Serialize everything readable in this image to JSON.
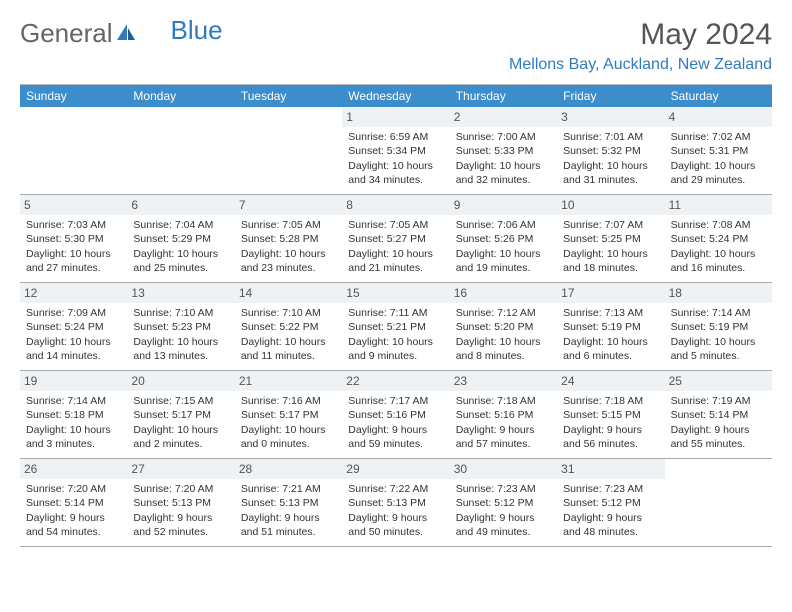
{
  "logo": {
    "text1": "General",
    "text2": "Blue"
  },
  "title": "May 2024",
  "location": "Mellons Bay, Auckland, New Zealand",
  "calendar": {
    "header_bg": "#3c8dcc",
    "header_fg": "#ffffff",
    "daynum_bg": "#eef2f5",
    "border_color": "#aaaaaa",
    "weekdays": [
      "Sunday",
      "Monday",
      "Tuesday",
      "Wednesday",
      "Thursday",
      "Friday",
      "Saturday"
    ],
    "weeks": [
      [
        {
          "num": "",
          "lines": []
        },
        {
          "num": "",
          "lines": []
        },
        {
          "num": "",
          "lines": []
        },
        {
          "num": "1",
          "lines": [
            "Sunrise: 6:59 AM",
            "Sunset: 5:34 PM",
            "Daylight: 10 hours",
            "and 34 minutes."
          ]
        },
        {
          "num": "2",
          "lines": [
            "Sunrise: 7:00 AM",
            "Sunset: 5:33 PM",
            "Daylight: 10 hours",
            "and 32 minutes."
          ]
        },
        {
          "num": "3",
          "lines": [
            "Sunrise: 7:01 AM",
            "Sunset: 5:32 PM",
            "Daylight: 10 hours",
            "and 31 minutes."
          ]
        },
        {
          "num": "4",
          "lines": [
            "Sunrise: 7:02 AM",
            "Sunset: 5:31 PM",
            "Daylight: 10 hours",
            "and 29 minutes."
          ]
        }
      ],
      [
        {
          "num": "5",
          "lines": [
            "Sunrise: 7:03 AM",
            "Sunset: 5:30 PM",
            "Daylight: 10 hours",
            "and 27 minutes."
          ]
        },
        {
          "num": "6",
          "lines": [
            "Sunrise: 7:04 AM",
            "Sunset: 5:29 PM",
            "Daylight: 10 hours",
            "and 25 minutes."
          ]
        },
        {
          "num": "7",
          "lines": [
            "Sunrise: 7:05 AM",
            "Sunset: 5:28 PM",
            "Daylight: 10 hours",
            "and 23 minutes."
          ]
        },
        {
          "num": "8",
          "lines": [
            "Sunrise: 7:05 AM",
            "Sunset: 5:27 PM",
            "Daylight: 10 hours",
            "and 21 minutes."
          ]
        },
        {
          "num": "9",
          "lines": [
            "Sunrise: 7:06 AM",
            "Sunset: 5:26 PM",
            "Daylight: 10 hours",
            "and 19 minutes."
          ]
        },
        {
          "num": "10",
          "lines": [
            "Sunrise: 7:07 AM",
            "Sunset: 5:25 PM",
            "Daylight: 10 hours",
            "and 18 minutes."
          ]
        },
        {
          "num": "11",
          "lines": [
            "Sunrise: 7:08 AM",
            "Sunset: 5:24 PM",
            "Daylight: 10 hours",
            "and 16 minutes."
          ]
        }
      ],
      [
        {
          "num": "12",
          "lines": [
            "Sunrise: 7:09 AM",
            "Sunset: 5:24 PM",
            "Daylight: 10 hours",
            "and 14 minutes."
          ]
        },
        {
          "num": "13",
          "lines": [
            "Sunrise: 7:10 AM",
            "Sunset: 5:23 PM",
            "Daylight: 10 hours",
            "and 13 minutes."
          ]
        },
        {
          "num": "14",
          "lines": [
            "Sunrise: 7:10 AM",
            "Sunset: 5:22 PM",
            "Daylight: 10 hours",
            "and 11 minutes."
          ]
        },
        {
          "num": "15",
          "lines": [
            "Sunrise: 7:11 AM",
            "Sunset: 5:21 PM",
            "Daylight: 10 hours",
            "and 9 minutes."
          ]
        },
        {
          "num": "16",
          "lines": [
            "Sunrise: 7:12 AM",
            "Sunset: 5:20 PM",
            "Daylight: 10 hours",
            "and 8 minutes."
          ]
        },
        {
          "num": "17",
          "lines": [
            "Sunrise: 7:13 AM",
            "Sunset: 5:19 PM",
            "Daylight: 10 hours",
            "and 6 minutes."
          ]
        },
        {
          "num": "18",
          "lines": [
            "Sunrise: 7:14 AM",
            "Sunset: 5:19 PM",
            "Daylight: 10 hours",
            "and 5 minutes."
          ]
        }
      ],
      [
        {
          "num": "19",
          "lines": [
            "Sunrise: 7:14 AM",
            "Sunset: 5:18 PM",
            "Daylight: 10 hours",
            "and 3 minutes."
          ]
        },
        {
          "num": "20",
          "lines": [
            "Sunrise: 7:15 AM",
            "Sunset: 5:17 PM",
            "Daylight: 10 hours",
            "and 2 minutes."
          ]
        },
        {
          "num": "21",
          "lines": [
            "Sunrise: 7:16 AM",
            "Sunset: 5:17 PM",
            "Daylight: 10 hours",
            "and 0 minutes."
          ]
        },
        {
          "num": "22",
          "lines": [
            "Sunrise: 7:17 AM",
            "Sunset: 5:16 PM",
            "Daylight: 9 hours",
            "and 59 minutes."
          ]
        },
        {
          "num": "23",
          "lines": [
            "Sunrise: 7:18 AM",
            "Sunset: 5:16 PM",
            "Daylight: 9 hours",
            "and 57 minutes."
          ]
        },
        {
          "num": "24",
          "lines": [
            "Sunrise: 7:18 AM",
            "Sunset: 5:15 PM",
            "Daylight: 9 hours",
            "and 56 minutes."
          ]
        },
        {
          "num": "25",
          "lines": [
            "Sunrise: 7:19 AM",
            "Sunset: 5:14 PM",
            "Daylight: 9 hours",
            "and 55 minutes."
          ]
        }
      ],
      [
        {
          "num": "26",
          "lines": [
            "Sunrise: 7:20 AM",
            "Sunset: 5:14 PM",
            "Daylight: 9 hours",
            "and 54 minutes."
          ]
        },
        {
          "num": "27",
          "lines": [
            "Sunrise: 7:20 AM",
            "Sunset: 5:13 PM",
            "Daylight: 9 hours",
            "and 52 minutes."
          ]
        },
        {
          "num": "28",
          "lines": [
            "Sunrise: 7:21 AM",
            "Sunset: 5:13 PM",
            "Daylight: 9 hours",
            "and 51 minutes."
          ]
        },
        {
          "num": "29",
          "lines": [
            "Sunrise: 7:22 AM",
            "Sunset: 5:13 PM",
            "Daylight: 9 hours",
            "and 50 minutes."
          ]
        },
        {
          "num": "30",
          "lines": [
            "Sunrise: 7:23 AM",
            "Sunset: 5:12 PM",
            "Daylight: 9 hours",
            "and 49 minutes."
          ]
        },
        {
          "num": "31",
          "lines": [
            "Sunrise: 7:23 AM",
            "Sunset: 5:12 PM",
            "Daylight: 9 hours",
            "and 48 minutes."
          ]
        },
        {
          "num": "",
          "lines": []
        }
      ]
    ]
  }
}
